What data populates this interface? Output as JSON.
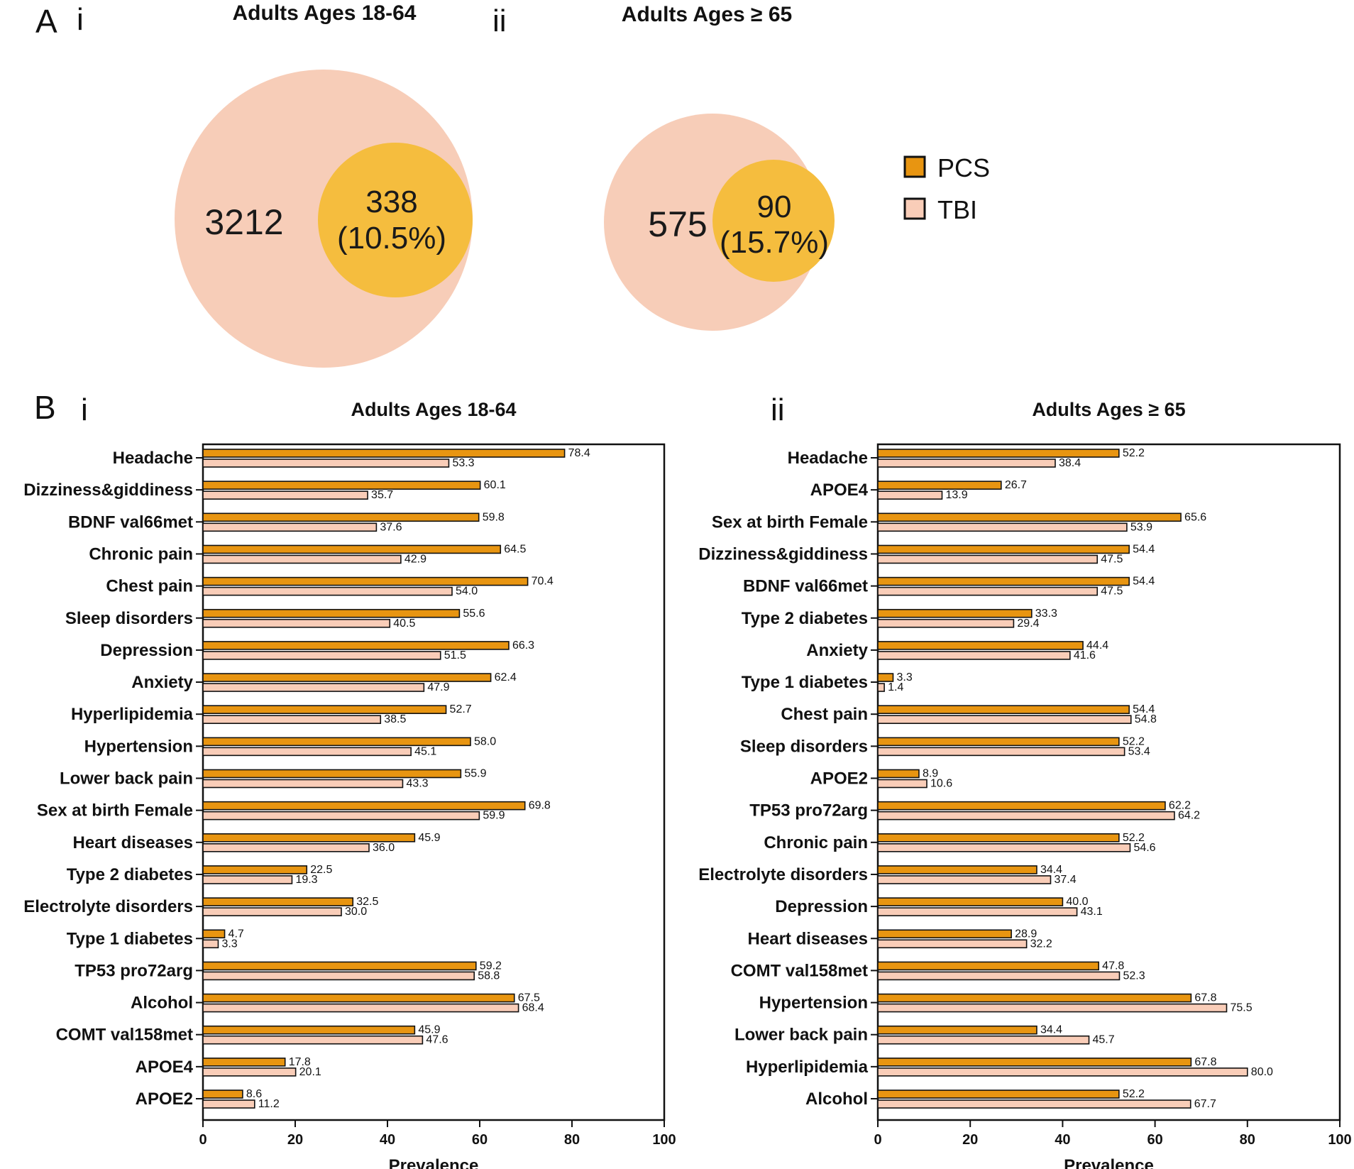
{
  "colors": {
    "pcs": "#E89511",
    "tbi": "#F9CDB8",
    "venn_outer": "#F7CDB8",
    "venn_inner": "#F5BD3E",
    "stroke": "#111111"
  },
  "panel_a": {
    "letter": "A",
    "venn": [
      {
        "sublabel": "i",
        "title": "Adults Ages 18-64",
        "tbi_count": "3212",
        "pcs_count": "338",
        "pcs_pct": "(10.5%)"
      },
      {
        "sublabel": "ii",
        "title": "Adults Ages ≥ 65",
        "tbi_count": "575",
        "pcs_count": "90",
        "pcs_pct": "(15.7%)"
      }
    ],
    "legend": [
      {
        "name": "PCS",
        "color_key": "pcs"
      },
      {
        "name": "TBI",
        "color_key": "tbi"
      }
    ]
  },
  "panel_b": {
    "letter": "B"
  },
  "chart_data": [
    {
      "type": "bar",
      "orientation": "horizontal",
      "sublabel": "i",
      "title": "Adults Ages 18-64",
      "xlabel": "Prevalence",
      "ylabel": "",
      "xlim": [
        0,
        100
      ],
      "xticks": [
        0,
        20,
        40,
        60,
        80,
        100
      ],
      "categories": [
        "Headache",
        "Dizziness&giddiness",
        "BDNF val66met",
        "Chronic pain",
        "Chest pain",
        "Sleep disorders",
        "Depression",
        "Anxiety",
        "Hyperlipidemia",
        "Hypertension",
        "Lower back pain",
        "Sex at birth Female",
        "Heart diseases",
        "Type 2 diabetes",
        "Electrolyte disorders",
        "Type 1 diabetes",
        "TP53 pro72arg",
        "Alcohol",
        "COMT val158met",
        "APOE4",
        "APOE2"
      ],
      "series": [
        {
          "name": "PCS",
          "values": [
            78.4,
            60.1,
            59.8,
            64.5,
            70.4,
            55.6,
            66.3,
            62.4,
            52.7,
            58.0,
            55.9,
            69.8,
            45.9,
            22.5,
            32.5,
            4.7,
            59.2,
            67.5,
            45.9,
            17.8,
            8.6
          ]
        },
        {
          "name": "TBI",
          "values": [
            53.3,
            35.7,
            37.6,
            42.9,
            54.0,
            40.5,
            51.5,
            47.9,
            38.5,
            45.1,
            43.3,
            59.9,
            36.0,
            19.3,
            30.0,
            3.3,
            58.8,
            68.4,
            47.6,
            20.1,
            11.2
          ]
        }
      ]
    },
    {
      "type": "bar",
      "orientation": "horizontal",
      "sublabel": "ii",
      "title": "Adults Ages ≥ 65",
      "xlabel": "Prevalence",
      "ylabel": "",
      "xlim": [
        0,
        100
      ],
      "xticks": [
        0,
        20,
        40,
        60,
        80,
        100
      ],
      "categories": [
        "Headache",
        "APOE4",
        "Sex at birth Female",
        "Dizziness&giddiness",
        "BDNF val66met",
        "Type 2 diabetes",
        "Anxiety",
        "Type 1 diabetes",
        "Chest pain",
        "Sleep disorders",
        "APOE2",
        "TP53 pro72arg",
        "Chronic pain",
        "Electrolyte disorders",
        "Depression",
        "Heart diseases",
        "COMT val158met",
        "Hypertension",
        "Lower back pain",
        "Hyperlipidemia",
        "Alcohol"
      ],
      "series": [
        {
          "name": "PCS",
          "values": [
            52.2,
            26.7,
            65.6,
            54.4,
            54.4,
            33.3,
            44.4,
            3.3,
            54.4,
            52.2,
            8.9,
            62.2,
            52.2,
            34.4,
            40.0,
            28.9,
            47.8,
            67.8,
            34.4,
            67.8,
            52.2
          ]
        },
        {
          "name": "TBI",
          "values": [
            38.4,
            13.9,
            53.9,
            47.5,
            47.5,
            29.4,
            41.6,
            1.4,
            54.8,
            53.4,
            10.6,
            64.2,
            54.6,
            37.4,
            43.1,
            32.2,
            52.3,
            75.5,
            45.7,
            80.0,
            67.7
          ]
        }
      ]
    }
  ]
}
